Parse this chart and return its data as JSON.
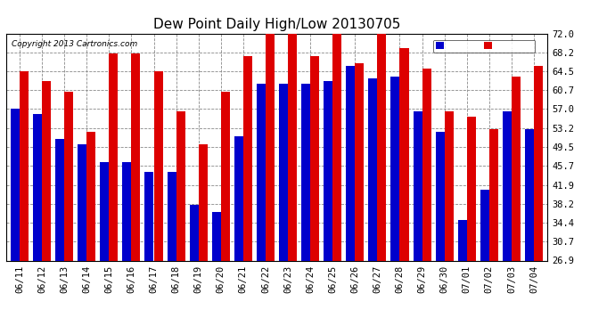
{
  "title": "Dew Point Daily High/Low 20130705",
  "copyright": "Copyright 2013 Cartronics.com",
  "ytick_values": [
    26.9,
    30.7,
    34.4,
    38.2,
    41.9,
    45.7,
    49.5,
    53.2,
    57.0,
    60.7,
    64.5,
    68.2,
    72.0
  ],
  "dates": [
    "06/11",
    "06/12",
    "06/13",
    "06/14",
    "06/15",
    "06/16",
    "06/17",
    "06/18",
    "06/19",
    "06/20",
    "06/21",
    "06/22",
    "06/23",
    "06/24",
    "06/25",
    "06/26",
    "06/27",
    "06/28",
    "06/29",
    "06/30",
    "07/01",
    "07/02",
    "07/03",
    "07/04"
  ],
  "low_values": [
    57.0,
    56.0,
    51.0,
    50.0,
    46.5,
    46.5,
    44.5,
    44.5,
    38.0,
    36.5,
    51.5,
    62.0,
    62.0,
    62.0,
    62.5,
    65.5,
    63.0,
    63.5,
    56.5,
    52.5,
    35.0,
    41.0,
    56.5,
    53.0
  ],
  "high_values": [
    64.5,
    62.5,
    60.5,
    52.5,
    68.0,
    68.0,
    64.5,
    56.5,
    50.0,
    60.5,
    67.5,
    72.0,
    72.0,
    67.5,
    72.0,
    66.0,
    72.5,
    69.0,
    65.0,
    56.5,
    55.5,
    53.0,
    63.5,
    65.5
  ],
  "low_color": "#0000cc",
  "high_color": "#dd0000",
  "background_color": "#ffffff",
  "plot_bg_color": "#ffffff",
  "grid_color": "#888888",
  "ymin": 26.9,
  "ymax": 72.0,
  "bar_width": 0.4,
  "title_fontsize": 11,
  "tick_fontsize": 7.5,
  "copyright_fontsize": 6.5
}
